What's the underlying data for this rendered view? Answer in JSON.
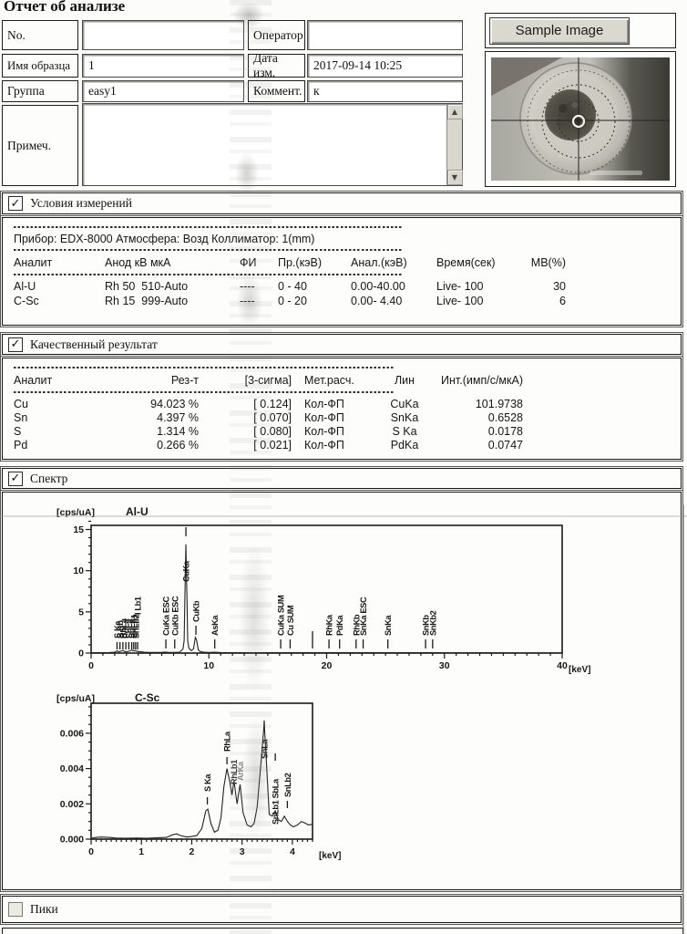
{
  "title": "Отчет об анализе",
  "form": {
    "no_label": "No.",
    "no_value": "",
    "operator_label": "Оператор",
    "operator_value": "",
    "sample_name_label": "Имя образца",
    "sample_name_value": "1",
    "date_label": "Дата изм.",
    "date_value": "2017-09-14  10:25",
    "group_label": "Группа",
    "group_value": "easy1",
    "comment_label": "Коммент.",
    "comment_value": "к",
    "note_label": "Примеч.",
    "note_value": "",
    "sample_image_button": "Sample Image"
  },
  "sections": {
    "conditions": {
      "label": "Условия измерений",
      "checked": true,
      "instrument_line": "Прибор: EDX-8000   Атмосфера: Возд   Коллиматор: 1(mm)",
      "table": {
        "columns": [
          "Аналит",
          "Анод кВ мкА",
          "ФИ",
          "Пр.(кэВ)",
          "Анал.(кэВ)",
          "Время(сек)",
          "МВ(%)"
        ],
        "rows": [
          [
            "Al-U",
            "Rh 50  510-Auto",
            "----",
            "0 - 40",
            "0.00-40.00",
            "Live- 100",
            "30"
          ],
          [
            "C-Sc",
            "Rh 15  999-Auto",
            "----",
            "0 - 20",
            "0.00- 4.40",
            "Live- 100",
            "6"
          ]
        ]
      }
    },
    "qualitative": {
      "label": "Качественный результат",
      "checked": true,
      "table": {
        "columns": [
          "Аналит",
          "Рез-т",
          "[3-сигма]",
          "Мет.расч.",
          "Лин",
          "Инт.(имп/с/мкА)"
        ],
        "rows": [
          [
            "Cu",
            "94.023 %",
            "[ 0.124]",
            "Кол-ФП",
            "CuKa",
            "101.9738"
          ],
          [
            "Sn",
            "4.397 %",
            "[ 0.070]",
            "Кол-ФП",
            "SnKa",
            "0.6528"
          ],
          [
            "S",
            "1.314 %",
            "[ 0.080]",
            "Кол-ФП",
            "S Ka",
            "0.0178"
          ],
          [
            "Pd",
            "0.266 %",
            "[ 0.021]",
            "Кол-ФП",
            "PdKa",
            "0.0747"
          ]
        ]
      }
    },
    "spectrum": {
      "label": "Спектр",
      "checked": true
    },
    "peaks": {
      "label": "Пики",
      "checked": false
    }
  },
  "chart_data": [
    {
      "type": "line",
      "name": "Al-U",
      "y_unit": "[cps/uA]",
      "x_unit": "[keV]",
      "xlim": [
        0,
        40
      ],
      "ylim": [
        0,
        15.5
      ],
      "xticks": [
        {
          "v": 0,
          "t": "0"
        },
        {
          "v": 10,
          "t": "10"
        },
        {
          "v": 20,
          "t": "20"
        },
        {
          "v": 30,
          "t": "30"
        },
        {
          "v": 40,
          "t": "40"
        }
      ],
      "yticks": [
        {
          "v": 0,
          "t": "0"
        },
        {
          "v": 5,
          "t": "5"
        },
        {
          "v": 10,
          "t": "10"
        },
        {
          "v": 15,
          "t": "15"
        }
      ],
      "x_minor": 1,
      "y_minor": 1,
      "points": [
        [
          0,
          0.05
        ],
        [
          0.5,
          0.05
        ],
        [
          1,
          0.06
        ],
        [
          1.5,
          0.07
        ],
        [
          2,
          0.1
        ],
        [
          2.2,
          0.28
        ],
        [
          2.35,
          0.15
        ],
        [
          2.5,
          0.22
        ],
        [
          2.7,
          0.32
        ],
        [
          2.85,
          0.2
        ],
        [
          3,
          0.16
        ],
        [
          3.2,
          0.22
        ],
        [
          3.45,
          0.36
        ],
        [
          3.6,
          0.25
        ],
        [
          3.75,
          0.3
        ],
        [
          3.95,
          0.2
        ],
        [
          4.2,
          0.15
        ],
        [
          4.5,
          0.1
        ],
        [
          5,
          0.08
        ],
        [
          5.5,
          0.08
        ],
        [
          6,
          0.09
        ],
        [
          6.3,
          0.12
        ],
        [
          6.6,
          0.08
        ],
        [
          7,
          0.08
        ],
        [
          7.5,
          0.1
        ],
        [
          7.8,
          0.5
        ],
        [
          7.9,
          1.5
        ],
        [
          7.95,
          6
        ],
        [
          8.05,
          13.2
        ],
        [
          8.15,
          6
        ],
        [
          8.2,
          1.5
        ],
        [
          8.3,
          0.6
        ],
        [
          8.5,
          0.3
        ],
        [
          8.7,
          0.5
        ],
        [
          8.85,
          1.9
        ],
        [
          8.95,
          1.6
        ],
        [
          9.1,
          0.4
        ],
        [
          9.3,
          0.15
        ],
        [
          9.6,
          0.1
        ],
        [
          10,
          0.08
        ],
        [
          10.5,
          0.1
        ],
        [
          11,
          0.07
        ],
        [
          12,
          0.06
        ],
        [
          13,
          0.06
        ],
        [
          14,
          0.05
        ],
        [
          15,
          0.05
        ],
        [
          16,
          0.06
        ],
        [
          17,
          0.05
        ],
        [
          18,
          0.05
        ],
        [
          19,
          0.05
        ],
        [
          20,
          0.06
        ],
        [
          21,
          0.05
        ],
        [
          22,
          0.05
        ],
        [
          23,
          0.05
        ],
        [
          24,
          0.04
        ],
        [
          25,
          0.05
        ],
        [
          26,
          0.04
        ],
        [
          27,
          0.04
        ],
        [
          28,
          0.04
        ],
        [
          29,
          0.04
        ],
        [
          30,
          0.03
        ],
        [
          32,
          0.03
        ],
        [
          34,
          0.03
        ],
        [
          36,
          0.02
        ],
        [
          38,
          0.02
        ],
        [
          40,
          0.02
        ]
      ],
      "annotations": [
        {
          "x": 2.2,
          "label": "S Ka",
          "tick": [
            4,
            12
          ],
          "ls": 16
        },
        {
          "x": 2.45,
          "label": "S Kb",
          "tick": [
            4,
            12
          ],
          "ls": 16
        },
        {
          "x": 2.7,
          "label": "RhLa",
          "tick": [
            4,
            12
          ],
          "ls": 16
        },
        {
          "x": 2.95,
          "label": "PdLa",
          "tick": [
            4,
            12
          ],
          "ls": 16
        },
        {
          "x": 3.2,
          "label": "SnLa",
          "tick": [
            4,
            12
          ],
          "ls": 16
        },
        {
          "x": 3.45,
          "label": "SbLa",
          "tick": [
            4,
            12
          ],
          "ls": 16
        },
        {
          "x": 3.62,
          "label": "SnLb1",
          "tick": [
            4,
            12
          ],
          "ls": 16
        },
        {
          "x": 3.78,
          "label": "SnLb2",
          "tick": [
            4,
            12
          ],
          "ls": 16
        },
        {
          "x": 3.95,
          "label": "I Lb1",
          "tick": [
            4,
            12
          ],
          "ls": 42
        },
        {
          "x": 6.35,
          "label": "CuKa ESC",
          "tick": [
            5,
            15
          ],
          "ls": 19
        },
        {
          "x": 7.1,
          "label": "CuKb ESC",
          "tick": [
            5,
            15
          ],
          "ls": 19
        },
        {
          "x": 8.05,
          "label": "CuKa",
          "tick": [
            128,
            138
          ],
          "ls": 78
        },
        {
          "x": 8.9,
          "label": "CuKb",
          "tick": [
            20,
            30
          ],
          "ls": 34
        },
        {
          "x": 10.5,
          "label": "AsKa",
          "tick": [
            5,
            15
          ],
          "ls": 19
        },
        {
          "x": 16.1,
          "label": "CuKa SUM",
          "tick": [
            5,
            15
          ],
          "ls": 19
        },
        {
          "x": 16.9,
          "label": "Cu SUM",
          "tick": [
            5,
            15
          ],
          "ls": 19
        },
        {
          "x": 18.8,
          "label": "",
          "tick": [
            5,
            24
          ]
        },
        {
          "x": 20.2,
          "label": "RhKa",
          "tick": [
            5,
            15
          ],
          "ls": 19
        },
        {
          "x": 21.1,
          "label": "PdKa",
          "tick": [
            5,
            15
          ],
          "ls": 19
        },
        {
          "x": 22.5,
          "label": "RhKb",
          "tick": [
            5,
            15
          ],
          "ls": 19
        },
        {
          "x": 23.1,
          "label": "SnKa ESC",
          "tick": [
            5,
            15
          ],
          "ls": 19
        },
        {
          "x": 25.2,
          "label": "SnKa",
          "tick": [
            5,
            15
          ],
          "ls": 19
        },
        {
          "x": 28.4,
          "label": "SnKb",
          "tick": [
            5,
            15
          ],
          "ls": 19
        },
        {
          "x": 29.0,
          "label": "SnKb2",
          "tick": [
            5,
            15
          ],
          "ls": 19
        }
      ]
    },
    {
      "type": "line",
      "name": "C-Sc",
      "y_unit": "[cps/uA]",
      "x_unit": "[keV]",
      "xlim": [
        0,
        4.4
      ],
      "ylim": [
        0,
        0.0077
      ],
      "xticks": [
        {
          "v": 0,
          "t": "0"
        },
        {
          "v": 1,
          "t": "1"
        },
        {
          "v": 2,
          "t": "2"
        },
        {
          "v": 3,
          "t": "3"
        },
        {
          "v": 4,
          "t": "4"
        }
      ],
      "yticks": [
        {
          "v": 0,
          "t": "0.000"
        },
        {
          "v": 0.002,
          "t": "0.002"
        },
        {
          "v": 0.004,
          "t": "0.004"
        },
        {
          "v": 0.006,
          "t": "0.006"
        }
      ],
      "x_minor": 0.1,
      "y_minor": 0.0005,
      "points": [
        [
          0,
          5e-05
        ],
        [
          0.1,
          0.0001
        ],
        [
          0.2,
          0.00012
        ],
        [
          0.35,
          0.0001
        ],
        [
          0.5,
          6e-05
        ],
        [
          0.7,
          5e-05
        ],
        [
          0.9,
          6e-05
        ],
        [
          1.1,
          5e-05
        ],
        [
          1.3,
          7e-05
        ],
        [
          1.5,
          0.0001
        ],
        [
          1.62,
          0.00025
        ],
        [
          1.7,
          0.0003
        ],
        [
          1.78,
          0.0002
        ],
        [
          1.9,
          0.00012
        ],
        [
          2.0,
          0.00015
        ],
        [
          2.1,
          0.0002
        ],
        [
          2.2,
          0.0006
        ],
        [
          2.28,
          0.0016
        ],
        [
          2.32,
          0.0017
        ],
        [
          2.38,
          0.0009
        ],
        [
          2.45,
          0.0004
        ],
        [
          2.52,
          0.0005
        ],
        [
          2.58,
          0.0012
        ],
        [
          2.64,
          0.003
        ],
        [
          2.7,
          0.004
        ],
        [
          2.76,
          0.0032
        ],
        [
          2.8,
          0.0025
        ],
        [
          2.84,
          0.0033
        ],
        [
          2.9,
          0.002
        ],
        [
          2.96,
          0.0031
        ],
        [
          3.02,
          0.0015
        ],
        [
          3.1,
          0.0008
        ],
        [
          3.18,
          0.0007
        ],
        [
          3.24,
          0.0009
        ],
        [
          3.3,
          0.0018
        ],
        [
          3.38,
          0.0045
        ],
        [
          3.44,
          0.0066
        ],
        [
          3.5,
          0.0035
        ],
        [
          3.54,
          0.0014
        ],
        [
          3.6,
          0.0013
        ],
        [
          3.66,
          0.0016
        ],
        [
          3.72,
          0.0011
        ],
        [
          3.78,
          0.001
        ],
        [
          3.84,
          0.0013
        ],
        [
          3.9,
          0.001
        ],
        [
          3.96,
          0.0008
        ],
        [
          4.02,
          0.0007
        ],
        [
          4.1,
          0.0008
        ],
        [
          4.18,
          0.001
        ],
        [
          4.26,
          0.0009
        ],
        [
          4.32,
          0.0008
        ],
        [
          4.4,
          0.00085
        ]
      ],
      "annotations": [
        {
          "x": 2.31,
          "label": "S Ka",
          "tick": [
            38,
            46
          ],
          "ls": 52
        },
        {
          "x": 2.7,
          "label": "RhLa",
          "tick": [
            82,
            90
          ],
          "ls": 96
        },
        {
          "x": 2.83,
          "label": "RhLb1",
          "ls": 60,
          "color": "#3a3a3a"
        },
        {
          "x": 2.96,
          "label": "ArKa",
          "ls": 64,
          "color": "#8a8a8a"
        },
        {
          "x": 3.44,
          "label": "SnLa",
          "tick": [
            122,
            130
          ],
          "ls": 88
        },
        {
          "x": 3.66,
          "label": "SnLb1 SbLa",
          "tick": [
            86,
            94
          ],
          "ls": 16
        },
        {
          "x": 3.9,
          "label": "SnLb2",
          "tick": [
            34,
            42
          ],
          "ls": 46
        }
      ]
    }
  ]
}
